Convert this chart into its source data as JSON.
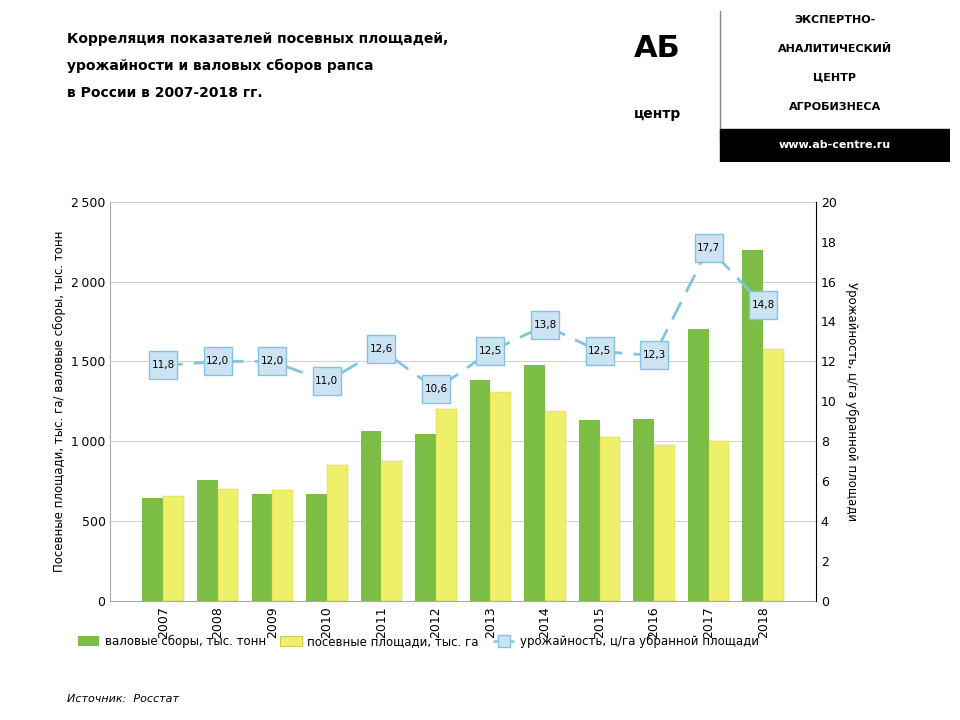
{
  "years": [
    2007,
    2008,
    2009,
    2010,
    2011,
    2012,
    2013,
    2014,
    2015,
    2016,
    2017,
    2018
  ],
  "valovye_sbory": [
    645,
    760,
    672,
    672,
    1065,
    1045,
    1385,
    1475,
    1135,
    1140,
    1700,
    2200
  ],
  "posevnye_ploshchadi": [
    660,
    700,
    695,
    850,
    880,
    1200,
    1310,
    1190,
    1030,
    975,
    1000,
    1575
  ],
  "urozhaynost": [
    11.8,
    12.0,
    12.0,
    11.0,
    12.6,
    10.6,
    12.5,
    13.8,
    12.5,
    12.3,
    17.7,
    14.8
  ],
  "bar_color_valovye": "#7cbd45",
  "bar_color_posevnye": "#eef06a",
  "line_color": "#82c4e0",
  "line_marker_facecolor": "#cce4f2",
  "line_marker_edgecolor": "#82c4e0",
  "background_color": "#ffffff",
  "grid_color": "#d0d0d0",
  "title_line1": "Корреляция показателей посевных площадей,",
  "title_line2": "урожайности и валовых сборов рапса",
  "title_line3": "в России в 2007-2018 гг.",
  "ylabel_left": "Посевные площади, тыс. га/ валовые сборы, тыс. тонн",
  "ylabel_right": "Урожайность, ц/га убранной площади",
  "legend_valovye": "валовые сборы, тыс. тонн",
  "legend_posevnye": "посевные площади, тыс. га",
  "legend_urozhaynost": "урожайность, ц/га убранной площади",
  "source_text": "Источник:  Росстат",
  "ylim_left": [
    0,
    2500
  ],
  "ylim_right": [
    0,
    20
  ],
  "yticks_left": [
    0,
    500,
    1000,
    1500,
    2000,
    2500
  ],
  "yticks_right": [
    0,
    2,
    4,
    6,
    8,
    10,
    12,
    14,
    16,
    18,
    20
  ]
}
